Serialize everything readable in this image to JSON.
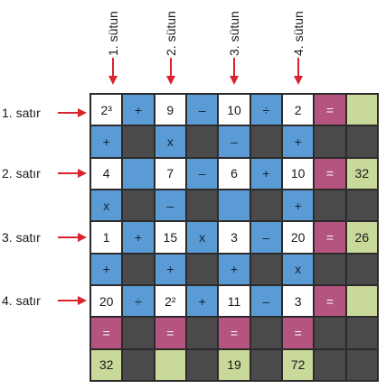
{
  "columns": [
    "1. sütun",
    "2. sütun",
    "3. sütun",
    "4. sütun"
  ],
  "rows": [
    "1. satır",
    "2. satır",
    "3. satır",
    "4. satır"
  ],
  "colors": {
    "white": "#ffffff",
    "blue": "#5b9bd5",
    "dark": "#4a4a4a",
    "pink": "#b5557f",
    "green": "#c9d99a",
    "arrow": "#d9232d"
  },
  "grid": [
    [
      [
        "2³",
        "w"
      ],
      [
        "+",
        "b"
      ],
      [
        "9",
        "w"
      ],
      [
        "–",
        "b"
      ],
      [
        "10",
        "w"
      ],
      [
        "÷",
        "b"
      ],
      [
        "2",
        "w"
      ],
      [
        "=",
        "p"
      ],
      [
        "",
        "g"
      ]
    ],
    [
      [
        "+",
        "b"
      ],
      [
        "",
        "d"
      ],
      [
        "x",
        "b"
      ],
      [
        "",
        "d"
      ],
      [
        "–",
        "b"
      ],
      [
        "",
        "d"
      ],
      [
        "+",
        "b"
      ],
      [
        "",
        "d"
      ],
      [
        "",
        "d"
      ]
    ],
    [
      [
        "4",
        "w"
      ],
      [
        "",
        "b"
      ],
      [
        "7",
        "w"
      ],
      [
        "–",
        "b"
      ],
      [
        "6",
        "w"
      ],
      [
        "+",
        "b"
      ],
      [
        "10",
        "w"
      ],
      [
        "=",
        "p"
      ],
      [
        "32",
        "g"
      ]
    ],
    [
      [
        "x",
        "b"
      ],
      [
        "",
        "d"
      ],
      [
        "–",
        "b"
      ],
      [
        "",
        "d"
      ],
      [
        "",
        "b"
      ],
      [
        "",
        "d"
      ],
      [
        "+",
        "b"
      ],
      [
        "",
        "d"
      ],
      [
        "",
        "d"
      ]
    ],
    [
      [
        "1",
        "w"
      ],
      [
        "+",
        "b"
      ],
      [
        "15",
        "w"
      ],
      [
        "x",
        "b"
      ],
      [
        "3",
        "w"
      ],
      [
        "–",
        "b"
      ],
      [
        "20",
        "w"
      ],
      [
        "=",
        "p"
      ],
      [
        "26",
        "g"
      ]
    ],
    [
      [
        "+",
        "b"
      ],
      [
        "",
        "d"
      ],
      [
        "+",
        "b"
      ],
      [
        "",
        "d"
      ],
      [
        "+",
        "b"
      ],
      [
        "",
        "d"
      ],
      [
        "x",
        "b"
      ],
      [
        "",
        "d"
      ],
      [
        "",
        "d"
      ]
    ],
    [
      [
        "20",
        "w"
      ],
      [
        "÷",
        "b"
      ],
      [
        "2²",
        "w"
      ],
      [
        "+",
        "b"
      ],
      [
        "11",
        "w"
      ],
      [
        "–",
        "b"
      ],
      [
        "3",
        "w"
      ],
      [
        "=",
        "p"
      ],
      [
        "",
        "g"
      ]
    ],
    [
      [
        "=",
        "p"
      ],
      [
        "",
        "d"
      ],
      [
        "=",
        "p"
      ],
      [
        "",
        "d"
      ],
      [
        "=",
        "p"
      ],
      [
        "",
        "d"
      ],
      [
        "=",
        "p"
      ],
      [
        "",
        "d"
      ],
      [
        "",
        "d"
      ]
    ],
    [
      [
        "32",
        "g"
      ],
      [
        "",
        "d"
      ],
      [
        "",
        "g"
      ],
      [
        "",
        "d"
      ],
      [
        "19",
        "g"
      ],
      [
        "",
        "d"
      ],
      [
        "72",
        "g"
      ],
      [
        "",
        "d"
      ],
      [
        "",
        "d"
      ]
    ]
  ]
}
